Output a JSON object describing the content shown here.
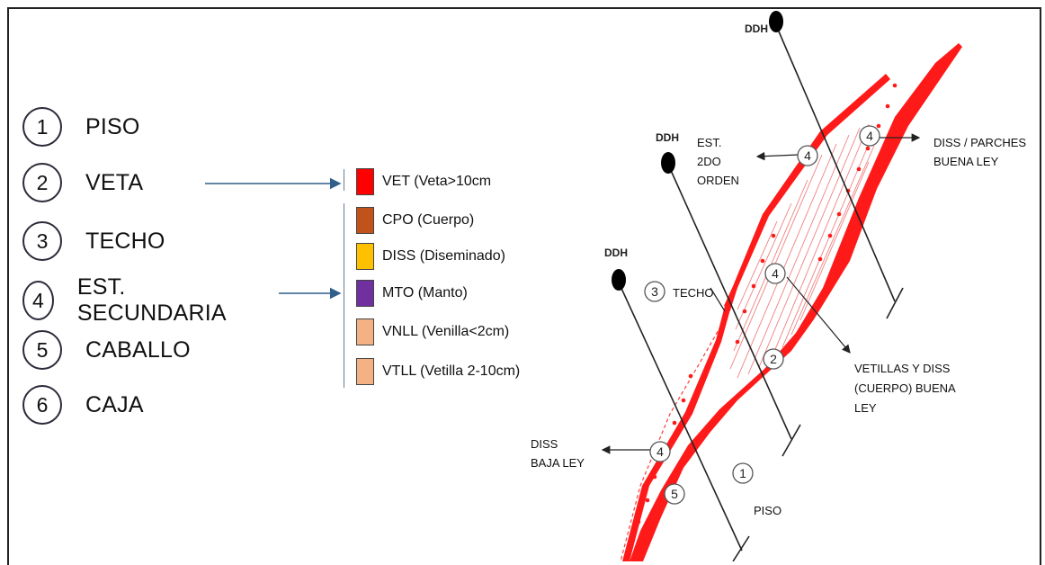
{
  "legend": {
    "items": [
      {
        "num": "1",
        "label": "PISO"
      },
      {
        "num": "2",
        "label": "VETA"
      },
      {
        "num": "3",
        "label": "TECHO"
      },
      {
        "num": "4",
        "label": "EST. SECUNDARIA"
      },
      {
        "num": "5",
        "label": "CABALLO"
      },
      {
        "num": "6",
        "label": "CAJA"
      }
    ]
  },
  "codes": {
    "items": [
      {
        "label": "VET (Veta>10cm",
        "color": "#ff0000"
      },
      {
        "label": "CPO (Cuerpo)",
        "color": "#c0521a"
      },
      {
        "label": "DISS (Diseminado)",
        "color": "#ffc000"
      },
      {
        "label": "MTO (Manto)",
        "color": "#7030a0"
      },
      {
        "label": "VNLL (Venilla<2cm)",
        "color": "#f4b183"
      },
      {
        "label": "VTLL (Vetilla 2-10cm)",
        "color": "#f4b183"
      }
    ]
  },
  "diagram": {
    "ddh_label": "DDH",
    "labels": {
      "est_2do_l1": "EST.",
      "est_2do_l2": "2DO",
      "est_2do_l3": "ORDEN",
      "diss_parches_l1": "DISS / PARCHES",
      "diss_parches_l2": "BUENA LEY",
      "techo": "TECHO",
      "vetillas_l1": "VETILLAS Y DISS",
      "vetillas_l2": "(CUERPO) BUENA",
      "vetillas_l3": "LEY",
      "diss_baja_l1": "DISS",
      "diss_baja_l2": "BAJA LEY",
      "piso": "PISO"
    },
    "markers": [
      "4",
      "4",
      "3",
      "4",
      "2",
      "4",
      "1",
      "5"
    ]
  }
}
